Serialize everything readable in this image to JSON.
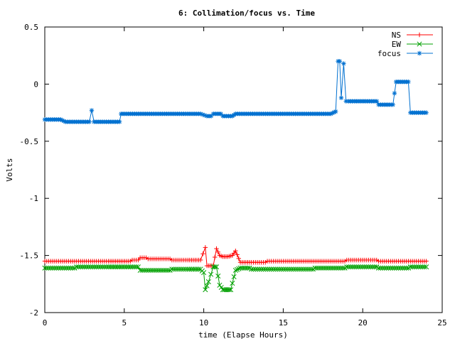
{
  "chart_data": {
    "type": "line",
    "title": "6: Collimation/focus vs. Time",
    "xlabel": "time (Elapse Hours)",
    "ylabel": "Volts",
    "xlim": [
      0,
      25
    ],
    "ylim": [
      -2,
      0.5
    ],
    "xticks": [
      0,
      5,
      10,
      15,
      20,
      25
    ],
    "xtick_labels": [
      "0",
      "5",
      "10",
      "15",
      "20",
      "25"
    ],
    "yticks": [
      0.5,
      0,
      -0.5,
      -1,
      -1.5,
      -2
    ],
    "ytick_labels": [
      "0.5",
      "0",
      "-0.5",
      "-1",
      "-1.5",
      "-2"
    ],
    "grid": false,
    "legend_position": "top-right",
    "series": [
      {
        "name": "NS",
        "color": "#ff0000",
        "marker": "plus",
        "x": [
          0,
          1,
          2,
          3,
          4,
          4.8,
          5.5,
          6,
          6.5,
          7,
          8,
          9,
          9.8,
          10.1,
          10.2,
          10.4,
          10.6,
          10.8,
          11.0,
          11.2,
          11.5,
          11.8,
          12.0,
          12.3,
          13,
          14,
          15,
          16,
          17,
          18,
          18.5,
          19,
          20,
          21,
          22,
          23,
          24
        ],
        "y": [
          -1.55,
          -1.55,
          -1.55,
          -1.55,
          -1.55,
          -1.55,
          -1.54,
          -1.52,
          -1.53,
          -1.53,
          -1.54,
          -1.54,
          -1.54,
          -1.43,
          -1.59,
          -1.59,
          -1.59,
          -1.44,
          -1.5,
          -1.51,
          -1.51,
          -1.5,
          -1.46,
          -1.56,
          -1.56,
          -1.55,
          -1.55,
          -1.55,
          -1.55,
          -1.55,
          -1.55,
          -1.54,
          -1.54,
          -1.55,
          -1.55,
          -1.55,
          -1.55
        ]
      },
      {
        "name": "EW",
        "color": "#00a000",
        "marker": "x",
        "x": [
          0,
          1,
          2,
          3,
          4,
          4.8,
          5.5,
          6,
          6.5,
          7,
          8,
          9,
          9.8,
          10.0,
          10.1,
          10.3,
          10.6,
          10.8,
          11.0,
          11.2,
          11.5,
          11.7,
          12.0,
          12.3,
          13,
          14,
          15,
          16,
          17,
          18,
          19,
          20,
          21,
          22,
          23,
          24
        ],
        "y": [
          -1.61,
          -1.61,
          -1.6,
          -1.6,
          -1.6,
          -1.6,
          -1.6,
          -1.63,
          -1.63,
          -1.63,
          -1.62,
          -1.62,
          -1.62,
          -1.65,
          -1.8,
          -1.73,
          -1.6,
          -1.6,
          -1.76,
          -1.8,
          -1.8,
          -1.8,
          -1.63,
          -1.61,
          -1.62,
          -1.62,
          -1.62,
          -1.62,
          -1.61,
          -1.61,
          -1.6,
          -1.6,
          -1.61,
          -1.61,
          -1.6,
          -1.6
        ]
      },
      {
        "name": "focus",
        "color": "#0070d0",
        "marker": "star",
        "x": [
          0,
          0.5,
          1.0,
          1.3,
          2.0,
          2.8,
          2.95,
          3.1,
          4.0,
          4.7,
          4.8,
          6,
          8,
          9.8,
          10.2,
          10.6,
          11.2,
          11.8,
          12.0,
          14,
          16,
          18.0,
          18.3,
          18.45,
          18.55,
          18.65,
          18.8,
          18.95,
          19.1,
          20.2,
          21.0,
          21.7,
          21.9,
          22.1,
          23.0,
          24.0
        ],
        "y": [
          -0.31,
          -0.31,
          -0.31,
          -0.33,
          -0.33,
          -0.33,
          -0.23,
          -0.33,
          -0.33,
          -0.33,
          -0.26,
          -0.26,
          -0.26,
          -0.26,
          -0.28,
          -0.26,
          -0.28,
          -0.28,
          -0.26,
          -0.26,
          -0.26,
          -0.26,
          -0.24,
          0.2,
          0.2,
          -0.12,
          0.18,
          -0.15,
          -0.15,
          -0.15,
          -0.18,
          -0.18,
          -0.18,
          0.02,
          -0.25,
          -0.25
        ]
      }
    ]
  }
}
